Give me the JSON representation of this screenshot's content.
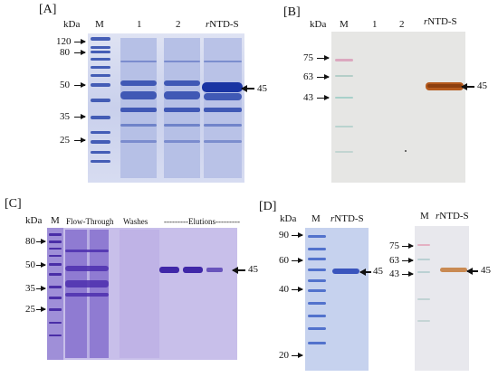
{
  "panelA": {
    "letter": "[A]",
    "kda": "kDa",
    "lanes": [
      "M",
      "1",
      "2",
      "NTD-S"
    ],
    "lane_prefix": "r",
    "markers": [
      "120",
      "80",
      "50",
      "35",
      "25"
    ],
    "band_label": "45"
  },
  "panelB": {
    "letter": "[B]",
    "kda": "kDa",
    "lanes": [
      "M",
      "1",
      "2",
      "NTD-S"
    ],
    "lane_prefix": "r",
    "markers": [
      "75",
      "63",
      "43"
    ],
    "band_label": "45"
  },
  "panelC": {
    "letter": "[C]",
    "kda": "kDa",
    "lane_m": "M",
    "groups": [
      "Flow-Through",
      "Washes",
      "---------Elutions---------"
    ],
    "markers": [
      "80",
      "50",
      "35",
      "25"
    ],
    "band_label": "45"
  },
  "panelD": {
    "letter": "[D]",
    "left": {
      "kda": "kDa",
      "lanes": [
        "M",
        "NTD-S"
      ],
      "lane_prefix": "r",
      "markers": [
        "90",
        "60",
        "40",
        "20"
      ],
      "band_label": "45"
    },
    "right": {
      "lanes": [
        "M",
        "NTD-S"
      ],
      "lane_prefix": "r",
      "markers": [
        "75",
        "63",
        "43"
      ],
      "band_label": "45"
    }
  }
}
